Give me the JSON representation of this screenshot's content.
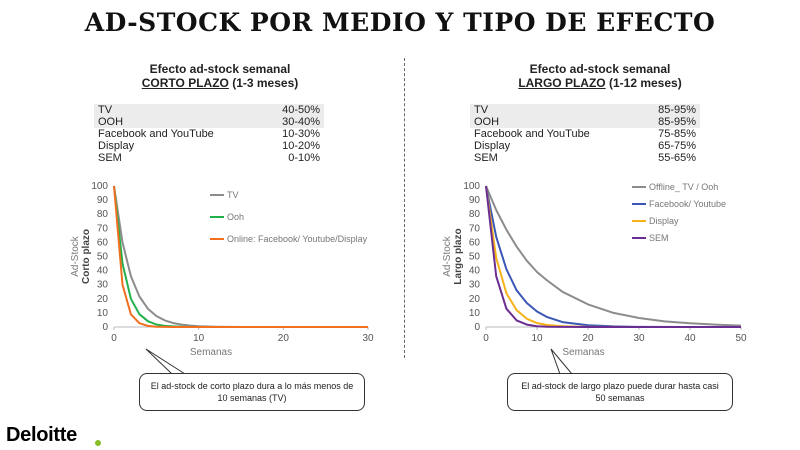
{
  "title": "AD-STOCK POR MEDIO Y TIPO DE EFECTO",
  "left": {
    "heading": "Efecto ad-stock semanal",
    "sub_underlined": "CORTO PLAZO",
    "sub_rest": " (1-3 meses)",
    "table": [
      {
        "media": "TV",
        "range": "40-50%"
      },
      {
        "media": "OOH",
        "range": "30-40%"
      },
      {
        "media": "Facebook and YouTube",
        "range": "10-30%"
      },
      {
        "media": "Display",
        "range": "10-20%"
      },
      {
        "media": "SEM",
        "range": "0-10%"
      }
    ],
    "callout": "El ad-stock de corto plazo dura a lo más menos de 10 semanas (TV)"
  },
  "right": {
    "heading": "Efecto ad-stock semanal",
    "sub_underlined": "LARGO PLAZO",
    "sub_rest": " (1-12 meses)",
    "table": [
      {
        "media": "TV",
        "range": "85-95%"
      },
      {
        "media": "OOH",
        "range": "85-95%"
      },
      {
        "media": "Facebook and YouTube",
        "range": "75-85%"
      },
      {
        "media": "Display",
        "range": "65-75%"
      },
      {
        "media": "SEM",
        "range": "55-65%"
      }
    ],
    "callout": "El ad-stock de largo plazo puede durar hasta casi 50 semanas"
  },
  "chart_data": [
    {
      "type": "line",
      "xlabel": "Semanas",
      "ylabel_line1": "Ad-Stock",
      "ylabel_line2": "Corto plazo",
      "xlim": [
        0,
        30
      ],
      "ylim": [
        0,
        100
      ],
      "x_ticks": [
        0,
        10,
        20,
        30
      ],
      "y_ticks": [
        0,
        10,
        20,
        30,
        40,
        50,
        60,
        70,
        80,
        90,
        100
      ],
      "legend_position": "right",
      "series": [
        {
          "name": "TV",
          "color": "#8c8c8c",
          "x": [
            0,
            1,
            2,
            3,
            4,
            5,
            6,
            7,
            8,
            9,
            10,
            12,
            15,
            20,
            30
          ],
          "y": [
            100,
            60,
            36,
            21.6,
            13,
            7.8,
            4.7,
            2.8,
            1.7,
            1,
            0.6,
            0.2,
            0,
            0,
            0
          ]
        },
        {
          "name": "Ooh",
          "color": "#22b04b",
          "x": [
            0,
            1,
            2,
            3,
            4,
            5,
            6,
            7,
            8,
            9,
            10,
            12,
            15,
            20,
            30
          ],
          "y": [
            100,
            45,
            20,
            9.1,
            4.1,
            1.8,
            0.8,
            0.4,
            0.2,
            0.1,
            0,
            0,
            0,
            0,
            0
          ]
        },
        {
          "name": "Online: Facebook/ Youtube/Display",
          "color": "#f07020",
          "x": [
            0,
            1,
            2,
            3,
            4,
            5,
            6,
            7,
            8,
            10,
            15,
            20,
            30
          ],
          "y": [
            100,
            30,
            9,
            2.7,
            0.8,
            0.2,
            0.1,
            0,
            0,
            0,
            0,
            0,
            0
          ]
        }
      ]
    },
    {
      "type": "line",
      "xlabel": "Semanas",
      "ylabel_line1": "Ad-Stock",
      "ylabel_line2": "Largo plazo",
      "xlim": [
        0,
        50
      ],
      "ylim": [
        0,
        100
      ],
      "x_ticks": [
        0,
        10,
        20,
        30,
        40,
        50
      ],
      "y_ticks": [
        0,
        10,
        20,
        30,
        40,
        50,
        60,
        70,
        80,
        90,
        100
      ],
      "legend_position": "right",
      "series": [
        {
          "name": "Offline_ TV / Ooh",
          "color": "#8c8c8c",
          "x": [
            0,
            2,
            4,
            6,
            8,
            10,
            12,
            15,
            20,
            25,
            30,
            35,
            40,
            45,
            50
          ],
          "y": [
            100,
            83,
            69,
            57,
            47,
            39,
            33,
            25,
            16,
            10,
            6.4,
            4,
            2.6,
            1.7,
            1
          ]
        },
        {
          "name": "Facebook/ Youtube",
          "color": "#3a57b5",
          "x": [
            0,
            2,
            4,
            6,
            8,
            10,
            12,
            15,
            20,
            25,
            30,
            40,
            50
          ],
          "y": [
            100,
            64,
            41,
            26,
            17,
            11,
            7,
            3.5,
            1.2,
            0.4,
            0.1,
            0,
            0
          ]
        },
        {
          "name": "Display",
          "color": "#f5b21b",
          "x": [
            0,
            2,
            4,
            6,
            8,
            10,
            12,
            15,
            20,
            30,
            50
          ],
          "y": [
            100,
            49,
            24,
            12,
            5.8,
            2.8,
            1.4,
            0.5,
            0.1,
            0,
            0
          ]
        },
        {
          "name": "SEM",
          "color": "#6a2d91",
          "x": [
            0,
            2,
            4,
            6,
            8,
            10,
            12,
            15,
            20,
            30,
            50
          ],
          "y": [
            100,
            36,
            13,
            4.7,
            1.7,
            0.6,
            0.2,
            0.1,
            0,
            0,
            0
          ]
        }
      ]
    }
  ],
  "brand": {
    "name": "Deloitte",
    "dot_color": "#86bc25"
  }
}
